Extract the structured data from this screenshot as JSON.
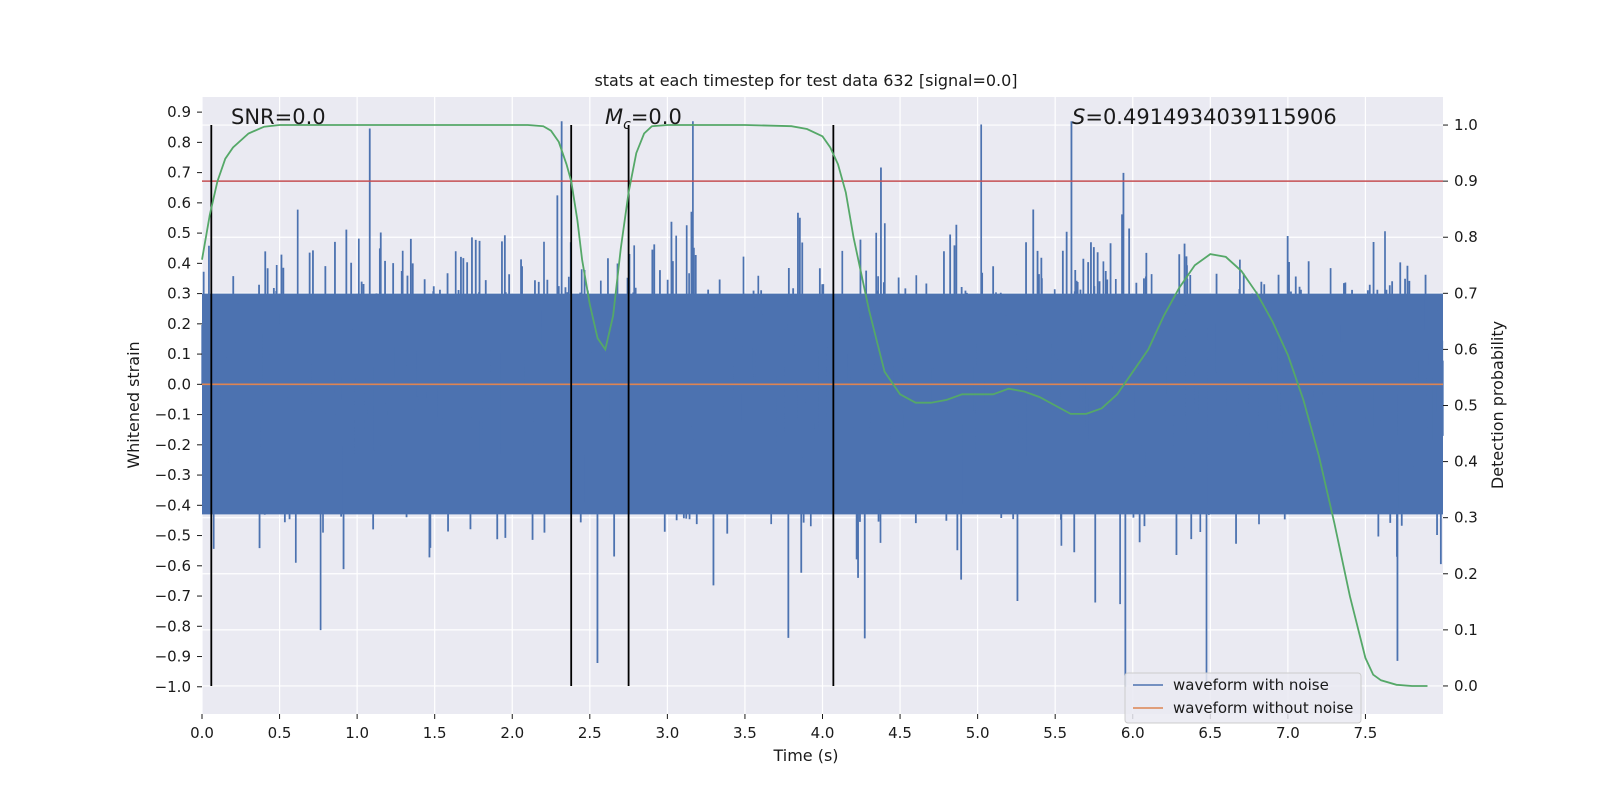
{
  "chart_data": {
    "type": "line",
    "title": "stats at each timestep for test data 632 [signal=0.0]",
    "xlabel": "Time (s)",
    "ylabel_left": "Whitened strain",
    "ylabel_right": "Detection probability",
    "xlim": [
      0.0,
      8.0
    ],
    "ylim_left": [
      -1.09,
      0.95
    ],
    "ylim_right": [
      -0.05,
      1.05
    ],
    "x_ticks": [
      "0.0",
      "0.5",
      "1.0",
      "1.5",
      "2.0",
      "2.5",
      "3.0",
      "3.5",
      "4.0",
      "4.5",
      "5.0",
      "5.5",
      "6.0",
      "6.5",
      "7.0",
      "7.5"
    ],
    "x_tick_values": [
      0,
      0.5,
      1,
      1.5,
      2,
      2.5,
      3,
      3.5,
      4,
      4.5,
      5,
      5.5,
      6,
      6.5,
      7,
      7.5
    ],
    "y_left_ticks": [
      "0.9",
      "0.8",
      "0.7",
      "0.6",
      "0.5",
      "0.4",
      "0.3",
      "0.2",
      "0.1",
      "0.0",
      "−0.1",
      "−0.2",
      "−0.3",
      "−0.4",
      "−0.5",
      "−0.6",
      "−0.7",
      "−0.8",
      "−0.9",
      "−1.0"
    ],
    "y_left_tick_values": [
      0.9,
      0.8,
      0.7,
      0.6,
      0.5,
      0.4,
      0.3,
      0.2,
      0.1,
      0.0,
      -0.1,
      -0.2,
      -0.3,
      -0.4,
      -0.5,
      -0.6,
      -0.7,
      -0.8,
      -0.9,
      -1.0
    ],
    "y_right_ticks": [
      "1.0",
      "0.9",
      "0.8",
      "0.7",
      "0.6",
      "0.5",
      "0.4",
      "0.3",
      "0.2",
      "0.1",
      "0.0"
    ],
    "y_right_tick_values": [
      1.0,
      0.9,
      0.8,
      0.7,
      0.6,
      0.5,
      0.4,
      0.3,
      0.2,
      0.1,
      0.0
    ],
    "annotations": {
      "snr": "SNR=0.0",
      "mc_symbol": "M",
      "mc_sub": "c",
      "mc_value": "=0.0",
      "s_symbol": "S",
      "s_value": "=0.4914934039115906"
    },
    "series": [
      {
        "name": "waveform with noise",
        "color": "#4c72b0",
        "axis": "left",
        "description": "noise samples, approx. range -1.0 to 0.87, mostly within +/-0.45"
      },
      {
        "name": "waveform without noise",
        "color": "#dd8452",
        "axis": "left",
        "x": [
          0,
          8
        ],
        "y": [
          0.0,
          0.0
        ]
      },
      {
        "name": "detection probability",
        "color": "#55a868",
        "axis": "right",
        "x": [
          0.0,
          0.05,
          0.1,
          0.15,
          0.2,
          0.3,
          0.4,
          0.5,
          0.7,
          1.0,
          1.5,
          2.0,
          2.1,
          2.2,
          2.25,
          2.3,
          2.35,
          2.38,
          2.42,
          2.45,
          2.5,
          2.55,
          2.6,
          2.65,
          2.7,
          2.75,
          2.8,
          2.85,
          2.9,
          3.0,
          3.2,
          3.5,
          3.8,
          3.9,
          4.0,
          4.05,
          4.1,
          4.15,
          4.2,
          4.3,
          4.4,
          4.5,
          4.6,
          4.7,
          4.8,
          4.9,
          5.0,
          5.1,
          5.2,
          5.3,
          5.4,
          5.5,
          5.6,
          5.7,
          5.8,
          5.9,
          6.0,
          6.1,
          6.2,
          6.3,
          6.4,
          6.5,
          6.6,
          6.7,
          6.8,
          6.9,
          7.0,
          7.1,
          7.2,
          7.3,
          7.4,
          7.5,
          7.55,
          7.6,
          7.7,
          7.8,
          7.9
        ],
        "y": [
          0.76,
          0.84,
          0.9,
          0.94,
          0.96,
          0.985,
          0.997,
          1.0,
          1.0,
          1.0,
          1.0,
          1.0,
          1.0,
          0.998,
          0.99,
          0.97,
          0.93,
          0.9,
          0.83,
          0.76,
          0.68,
          0.62,
          0.6,
          0.66,
          0.78,
          0.88,
          0.95,
          0.985,
          0.998,
          1.0,
          1.0,
          1.0,
          0.998,
          0.993,
          0.98,
          0.96,
          0.93,
          0.88,
          0.8,
          0.67,
          0.56,
          0.52,
          0.505,
          0.505,
          0.51,
          0.52,
          0.52,
          0.52,
          0.53,
          0.525,
          0.515,
          0.5,
          0.485,
          0.485,
          0.495,
          0.52,
          0.56,
          0.6,
          0.66,
          0.71,
          0.75,
          0.77,
          0.765,
          0.74,
          0.7,
          0.65,
          0.59,
          0.51,
          0.41,
          0.29,
          0.16,
          0.05,
          0.02,
          0.01,
          0.002,
          0.0,
          0.0
        ]
      },
      {
        "name": "threshold",
        "color": "#c44e52",
        "axis": "right",
        "x": [
          0,
          8
        ],
        "y": [
          0.9,
          0.9
        ]
      }
    ],
    "vertical_lines": [
      0.06,
      2.38,
      2.75,
      4.07
    ],
    "legend": {
      "position": "bottom-right",
      "entries": [
        "waveform with noise",
        "waveform without noise"
      ]
    }
  }
}
